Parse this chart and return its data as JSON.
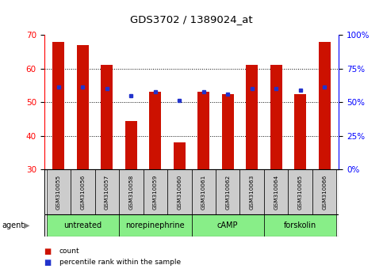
{
  "title": "GDS3702 / 1389024_at",
  "categories": [
    "GSM310055",
    "GSM310056",
    "GSM310057",
    "GSM310058",
    "GSM310059",
    "GSM310060",
    "GSM310061",
    "GSM310062",
    "GSM310063",
    "GSM310064",
    "GSM310065",
    "GSM310066"
  ],
  "bar_values": [
    68,
    67,
    61,
    44.5,
    53,
    38,
    53,
    52.5,
    61,
    61,
    52.5,
    68
  ],
  "dot_values": [
    54.5,
    54.5,
    54,
    52,
    53,
    50.5,
    53,
    52.5,
    54,
    54,
    53.5,
    54.5
  ],
  "bar_bottom": 30,
  "ylim_left": [
    30,
    70
  ],
  "ylim_right": [
    0,
    100
  ],
  "yticks_left": [
    30,
    40,
    50,
    60,
    70
  ],
  "yticks_right": [
    0,
    25,
    50,
    75,
    100
  ],
  "ytick_labels_right": [
    "0%",
    "25%",
    "50%",
    "75%",
    "100%"
  ],
  "bar_color": "#CC1100",
  "dot_color": "#2233CC",
  "agent_groups": [
    {
      "label": "untreated",
      "start": 0,
      "end": 3
    },
    {
      "label": "norepinephrine",
      "start": 3,
      "end": 6
    },
    {
      "label": "cAMP",
      "start": 6,
      "end": 9
    },
    {
      "label": "forskolin",
      "start": 9,
      "end": 12
    }
  ],
  "agent_bg_colors": [
    "#CCFFCC",
    "#88EE88",
    "#66DD66",
    "#44CC44"
  ],
  "agent_bg_color": "#88EE88",
  "sample_bg_color": "#CCCCCC",
  "bar_width": 0.5,
  "xlim": [
    -0.6,
    11.6
  ]
}
